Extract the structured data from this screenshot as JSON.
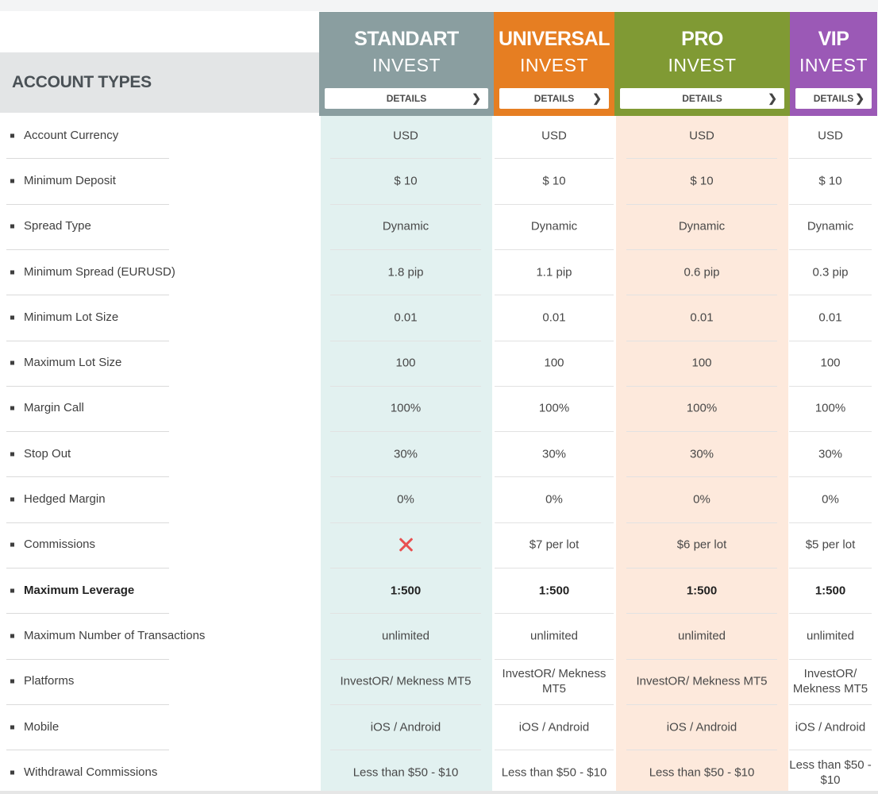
{
  "title": "ACCOUNT TYPES",
  "colors": {
    "standart": "#8a9ea0",
    "universal": "#e67e22",
    "pro": "#809a34",
    "vip": "#9b59b6",
    "standart_tint": "#e2f1f0",
    "pro_tint": "#fde9dc"
  },
  "accounts": [
    {
      "name": "STANDART",
      "sub": "INVEST",
      "details": "DETAILS",
      "chevron": "❯"
    },
    {
      "name": "UNIVERSAL",
      "sub": "INVEST",
      "details": "DETAILS",
      "chevron": "❯"
    },
    {
      "name": "PRO",
      "sub": "INVEST",
      "details": "DETAILS",
      "chevron": "❯"
    },
    {
      "name": "VIP",
      "sub": "INVEST",
      "details": "DETAILS",
      "chevron": "❯"
    }
  ],
  "rows": [
    {
      "label": "Account Currency",
      "values": [
        "USD",
        "USD",
        "USD",
        "USD"
      ]
    },
    {
      "label": "Minimum Deposit",
      "values": [
        "$ 10",
        "$ 10",
        "$ 10",
        "$ 10"
      ]
    },
    {
      "label": "Spread Type",
      "values": [
        "Dynamic",
        "Dynamic",
        "Dynamic",
        "Dynamic"
      ]
    },
    {
      "label": "Minimum Spread (EURUSD)",
      "values": [
        "1.8 pip",
        "1.1 pip",
        "0.6 pip",
        "0.3 pip"
      ]
    },
    {
      "label": "Minimum Lot Size",
      "values": [
        "0.01",
        "0.01",
        "0.01",
        "0.01"
      ]
    },
    {
      "label": "Maximum Lot Size",
      "values": [
        "100",
        "100",
        "100",
        "100"
      ]
    },
    {
      "label": "Margin Call",
      "values": [
        "100%",
        "100%",
        "100%",
        "100%"
      ]
    },
    {
      "label": "Stop Out",
      "values": [
        "30%",
        "30%",
        "30%",
        "30%"
      ]
    },
    {
      "label": "Hedged Margin",
      "values": [
        "0%",
        "0%",
        "0%",
        "0%"
      ]
    },
    {
      "label": "Commissions",
      "values": [
        "",
        "$7 per lot",
        "$6 per lot",
        "$5 per lot"
      ],
      "icons": [
        "cross-icon",
        "",
        "",
        ""
      ]
    },
    {
      "label": "Maximum Leverage",
      "values": [
        "1:500",
        "1:500",
        "1:500",
        "1:500"
      ],
      "bold": true
    },
    {
      "label": "Maximum Number of Transactions",
      "values": [
        "unlimited",
        "unlimited",
        "unlimited",
        "unlimited"
      ]
    },
    {
      "label": "Platforms",
      "values": [
        "InvestOR/ Mekness MT5",
        "InvestOR/ Mekness MT5",
        "InvestOR/ Mekness MT5",
        "InvestOR/ Mekness MT5"
      ]
    },
    {
      "label": "Mobile",
      "values": [
        "iOS / Android",
        "iOS / Android",
        "iOS / Android",
        "iOS / Android"
      ]
    },
    {
      "label": "Withdrawal Commissions",
      "values": [
        "Less than $50 - $10",
        "Less than $50 - $10",
        "Less than $50 - $10",
        "Less than $50 - $10"
      ]
    }
  ]
}
